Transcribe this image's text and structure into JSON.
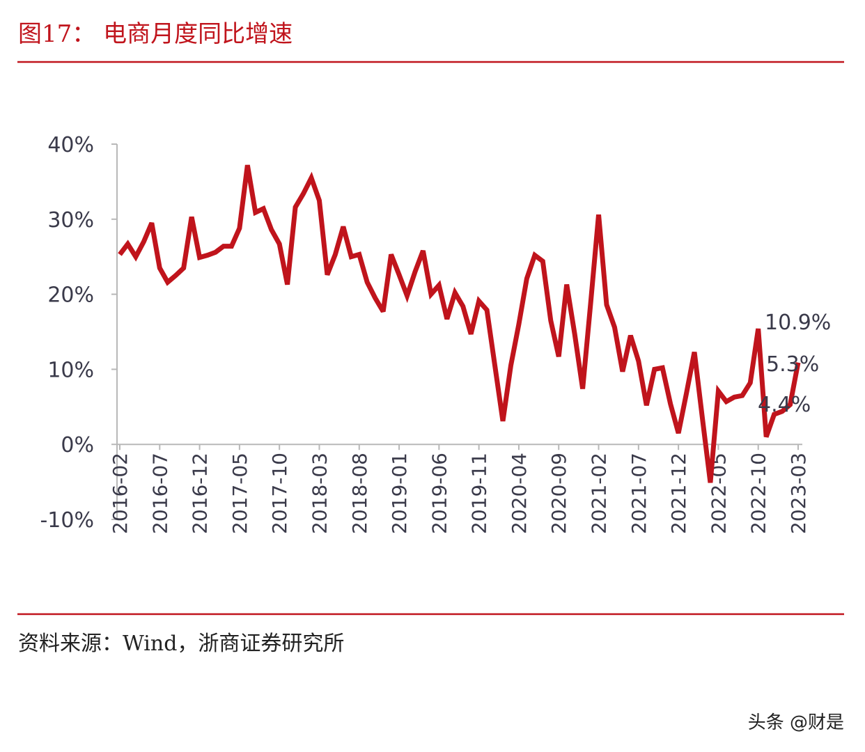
{
  "chart_data": {
    "type": "line",
    "title": "图17：  电商月度同比增速",
    "source": "资料来源：Wind，浙商证券研究所",
    "watermark": "头条 @财是",
    "categories": [
      "2016-02",
      null,
      null,
      null,
      null,
      "2016-07",
      null,
      null,
      null,
      null,
      "2016-12",
      null,
      null,
      null,
      null,
      "2017-05",
      null,
      null,
      null,
      null,
      "2017-10",
      null,
      null,
      null,
      null,
      "2018-03",
      null,
      null,
      null,
      null,
      "2018-08",
      null,
      null,
      null,
      null,
      "2019-01",
      null,
      null,
      null,
      null,
      "2019-06",
      null,
      null,
      null,
      null,
      "2019-11",
      null,
      null,
      null,
      null,
      "2020-04",
      null,
      null,
      null,
      null,
      "2020-09",
      null,
      null,
      null,
      null,
      "2021-02",
      null,
      null,
      null,
      null,
      "2021-07",
      null,
      null,
      null,
      null,
      "2021-12",
      null,
      null,
      null,
      null,
      "2022-05",
      null,
      null,
      null,
      null,
      "2022-10",
      null,
      null,
      null,
      null,
      "2023-03"
    ],
    "values": [
      25.3,
      26.7,
      25,
      27,
      29.5,
      23.5,
      21.6,
      22.5,
      23.5,
      30.3,
      24.9,
      25.2,
      25.6,
      26.4,
      26.4,
      28.8,
      37.2,
      30.9,
      31.4,
      28.6,
      26.7,
      21.3,
      31.6,
      33.4,
      35.5,
      32.5,
      22.6,
      25.3,
      29,
      25,
      25.3,
      21.6,
      19.5,
      17.7,
      25.3,
      22.6,
      19.8,
      23,
      25.8,
      20,
      21.2,
      16.7,
      20.2,
      18.4,
      14.7,
      19.1,
      17.9,
      10.5,
      3.1,
      10.5,
      16,
      22.1,
      25.2,
      24.4,
      16.5,
      11.7,
      21.3,
      14.7,
      7.4,
      18.8,
      30.6,
      18.6,
      15.6,
      9.7,
      14.5,
      11.1,
      5.2,
      10,
      10.2,
      5.4,
      1.5,
      6.8,
      12.3,
      3.5,
      -5.1,
      7.1,
      5.7,
      6.3,
      6.5,
      8.2,
      15.4,
      1.0,
      4.0,
      4.4,
      5.3,
      10.9
    ],
    "value_labels": [
      null,
      null,
      null,
      null,
      null,
      null,
      null,
      null,
      null,
      null,
      null,
      null,
      null,
      null,
      null,
      null,
      null,
      null,
      null,
      null,
      null,
      null,
      null,
      null,
      null,
      null,
      null,
      null,
      null,
      null,
      null,
      null,
      null,
      null,
      null,
      null,
      null,
      null,
      null,
      null,
      null,
      null,
      null,
      null,
      null,
      null,
      null,
      null,
      null,
      null,
      null,
      null,
      null,
      null,
      null,
      null,
      null,
      null,
      null,
      null,
      null,
      null,
      null,
      null,
      null,
      null,
      null,
      null,
      null,
      null,
      null,
      null,
      null,
      null,
      null,
      null,
      null,
      null,
      null,
      null,
      null,
      null,
      null,
      "4.4%",
      "5.3%",
      "10.9%"
    ],
    "color": "#c0141c",
    "ylim": [
      -10,
      40
    ],
    "yticks": [
      {
        "value": -10,
        "label": "-10%"
      },
      {
        "value": 0,
        "label": "0%"
      },
      {
        "value": 10,
        "label": "10%"
      },
      {
        "value": 20,
        "label": "20%"
      },
      {
        "value": 30,
        "label": "30%"
      },
      {
        "value": 40,
        "label": "40%"
      }
    ],
    "grid": false
  }
}
